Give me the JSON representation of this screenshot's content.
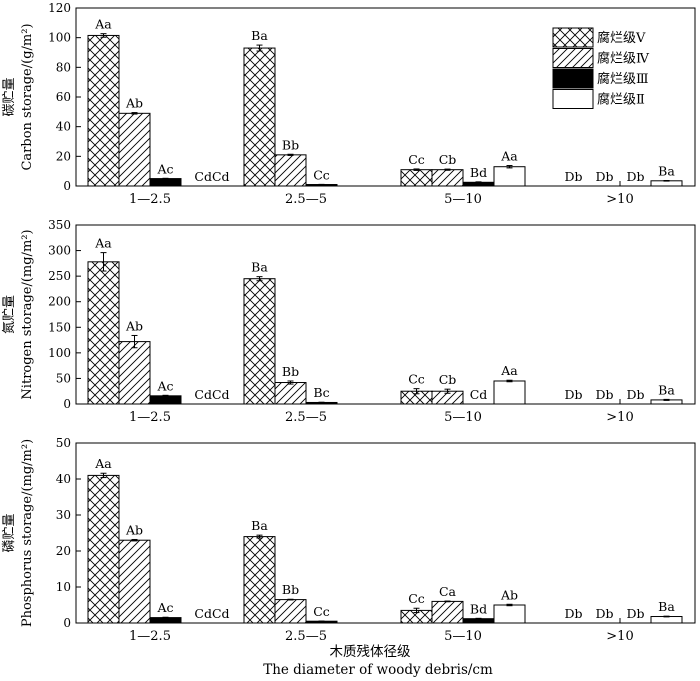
{
  "figure": {
    "xlabel_cn": "木质残体径级",
    "xlabel_en": "The diameter of woody debris/cm",
    "legend": [
      {
        "key": "V",
        "label": "腐烂级Ⅴ",
        "pattern": "crosshatch"
      },
      {
        "key": "IV",
        "label": "腐烂级Ⅳ",
        "pattern": "diagonal"
      },
      {
        "key": "III",
        "label": "腐烂级Ⅲ",
        "pattern": "solid-black"
      },
      {
        "key": "II",
        "label": "腐烂级Ⅱ",
        "pattern": "white"
      }
    ]
  },
  "chart_data": [
    {
      "type": "bar",
      "ylabel_cn": "碳贮量",
      "ylabel_en": "Carbon storage/(g/m²)",
      "ylim": [
        0,
        120
      ],
      "yticks": [
        0,
        20,
        40,
        60,
        80,
        100,
        120
      ],
      "categories": [
        "1—2.5",
        "2.5—5",
        "5—10",
        ">10"
      ],
      "series": [
        {
          "name": "腐烂级Ⅴ",
          "values": [
            101.5,
            93,
            11,
            0
          ],
          "errors": [
            1.2,
            2,
            0.5,
            0
          ],
          "labels": [
            "Aa",
            "Ba",
            "Cc",
            "Db"
          ]
        },
        {
          "name": "腐烂级Ⅳ",
          "values": [
            49,
            21,
            11,
            0
          ],
          "errors": [
            0.5,
            0.4,
            0.4,
            0
          ],
          "labels": [
            "Ab",
            "Bb",
            "Cb",
            "Db"
          ]
        },
        {
          "name": "腐烂级Ⅲ",
          "values": [
            5,
            1,
            2.5,
            0
          ],
          "errors": [
            0.2,
            0.1,
            0.3,
            0
          ],
          "labels": [
            "Ac",
            "Cc",
            "Bd",
            "Db"
          ]
        },
        {
          "name": "腐烂级Ⅱ",
          "values": [
            0,
            0,
            13,
            3.5
          ],
          "errors": [
            0,
            0,
            0.8,
            0.2
          ],
          "labels": [
            "CdCd",
            "",
            "Aa",
            "Ba"
          ]
        }
      ]
    },
    {
      "type": "bar",
      "ylabel_cn": "氮贮量",
      "ylabel_en": "Nitrogen storage/(mg/m²)",
      "ylim": [
        0,
        350
      ],
      "yticks": [
        0,
        50,
        100,
        150,
        200,
        250,
        300,
        350
      ],
      "categories": [
        "1—2.5",
        "2.5—5",
        "5—10",
        ">10"
      ],
      "series": [
        {
          "name": "腐烂级Ⅴ",
          "values": [
            278,
            245,
            25,
            0
          ],
          "errors": [
            18,
            4,
            5,
            0
          ],
          "labels": [
            "Aa",
            "Ba",
            "Cc",
            "Db"
          ]
        },
        {
          "name": "腐烂级Ⅳ",
          "values": [
            122,
            42,
            25,
            0
          ],
          "errors": [
            12,
            3,
            4,
            0
          ],
          "labels": [
            "Ab",
            "Bb",
            "Cb",
            "Db"
          ]
        },
        {
          "name": "腐烂级Ⅲ",
          "values": [
            16,
            3,
            0,
            0
          ],
          "errors": [
            1,
            0.5,
            0,
            0
          ],
          "labels": [
            "Ac",
            "Bc",
            "Cd",
            "Db"
          ]
        },
        {
          "name": "腐烂级Ⅱ",
          "values": [
            0,
            0,
            45,
            8
          ],
          "errors": [
            0,
            0,
            1.5,
            1
          ],
          "labels": [
            "CdCd",
            "",
            "Aa",
            "Ba"
          ]
        }
      ]
    },
    {
      "type": "bar",
      "ylabel_cn": "磷贮量",
      "ylabel_en": "Phosphorus storage/(mg/m²)",
      "ylim": [
        0,
        50
      ],
      "yticks": [
        0,
        10,
        20,
        30,
        40,
        50
      ],
      "categories": [
        "1—2.5",
        "2.5—5",
        "5—10",
        ">10"
      ],
      "series": [
        {
          "name": "腐烂级Ⅴ",
          "values": [
            41,
            24,
            3.5,
            0
          ],
          "errors": [
            0.6,
            0.4,
            0.6,
            0
          ],
          "labels": [
            "Aa",
            "Ba",
            "Cc",
            "Db"
          ]
        },
        {
          "name": "腐烂级Ⅳ",
          "values": [
            23,
            6.5,
            6,
            0
          ],
          "errors": [
            0.2,
            0.1,
            0.1,
            0
          ],
          "labels": [
            "Ab",
            "Bb",
            "Ca",
            "Db"
          ]
        },
        {
          "name": "腐烂级Ⅲ",
          "values": [
            1.5,
            0.5,
            1.2,
            0
          ],
          "errors": [
            0.1,
            0.05,
            0.1,
            0
          ],
          "labels": [
            "Ac",
            "Cc",
            "Bd",
            "Db"
          ]
        },
        {
          "name": "腐烂级Ⅱ",
          "values": [
            0,
            0,
            5,
            1.8
          ],
          "errors": [
            0,
            0,
            0.2,
            0.1
          ],
          "labels": [
            "CdCd",
            "",
            "Ab",
            "Ba"
          ]
        }
      ]
    }
  ]
}
